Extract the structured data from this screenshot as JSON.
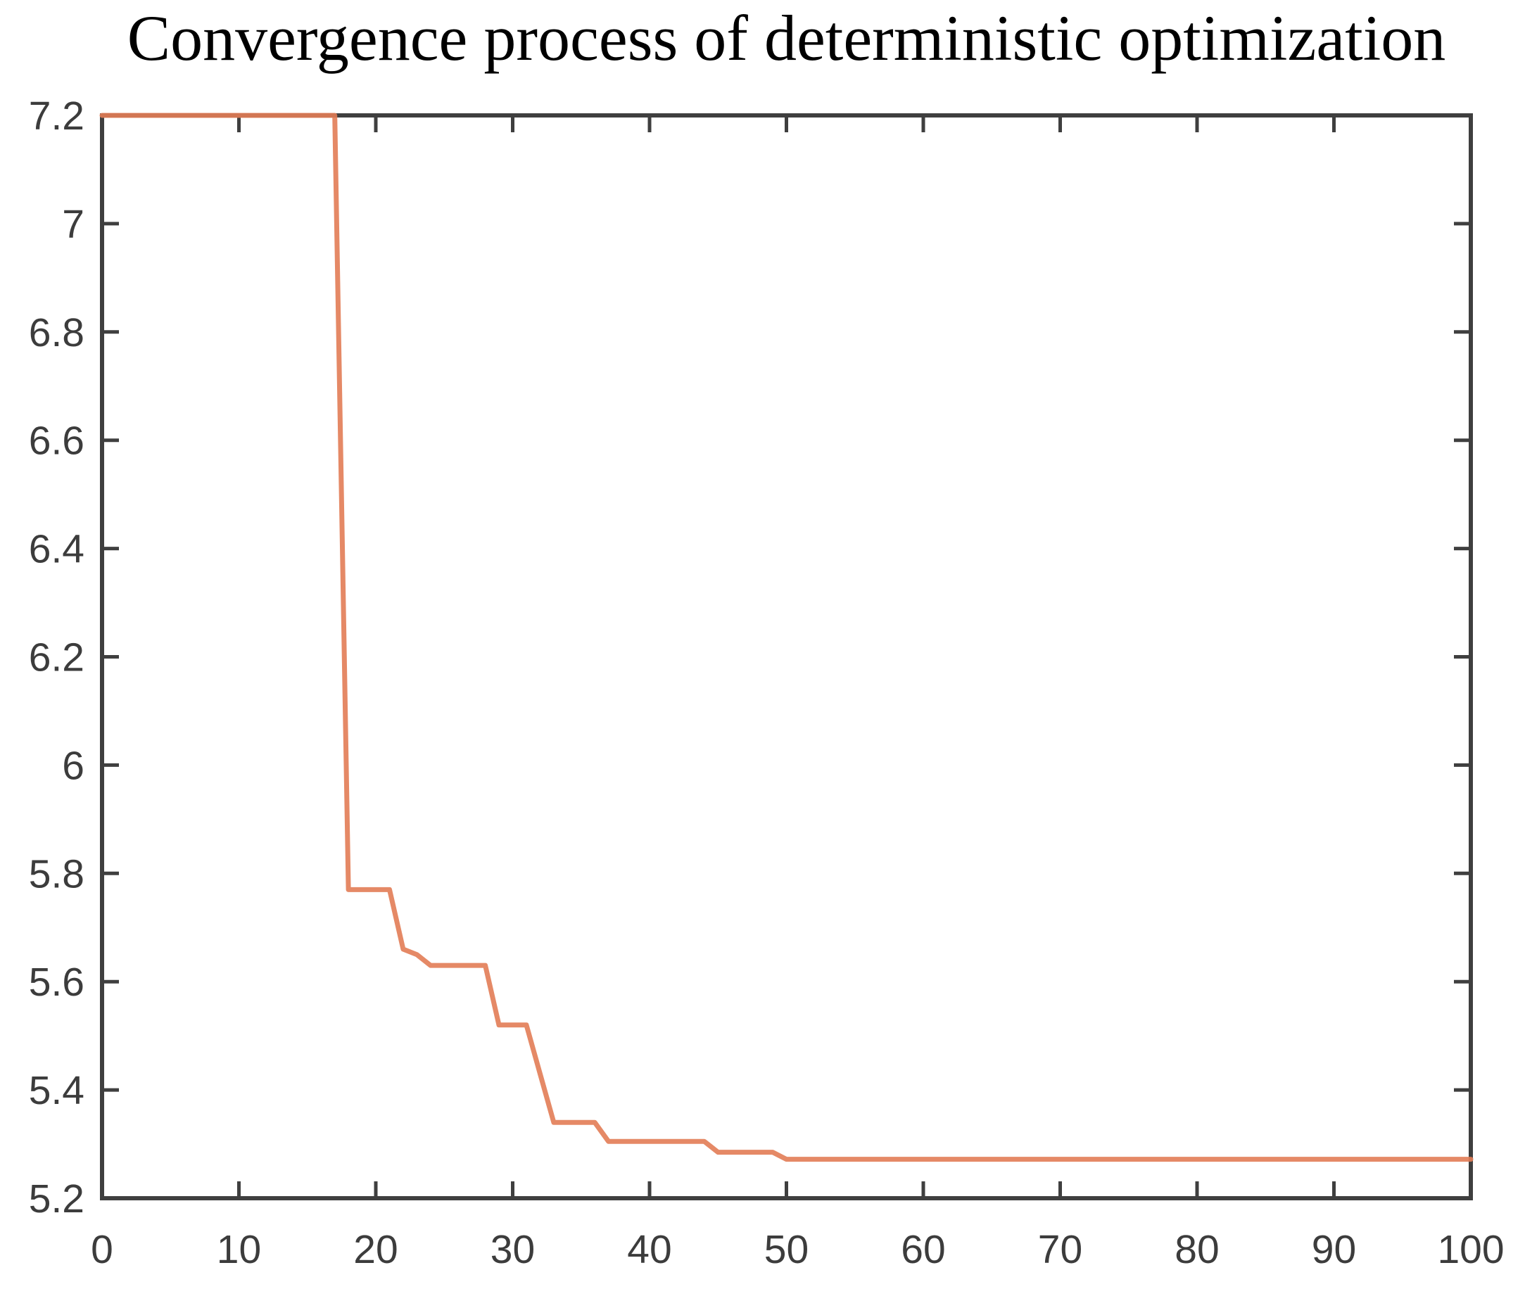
{
  "title": "Convergence process of deterministic optimization",
  "colors": {
    "background": "#ffffff",
    "axis": "#3f3f3f",
    "tick_label": "#3c3c3c",
    "title": "#000000",
    "line": "#e27c55"
  },
  "chart_data": {
    "type": "line",
    "title": "Convergence process of deterministic optimization",
    "xlabel": "",
    "ylabel": "",
    "xlim": [
      0,
      100
    ],
    "ylim": [
      5.2,
      7.2
    ],
    "grid": false,
    "legend": "none",
    "box": true,
    "ticks_inward_all_sides": true,
    "x_ticks": [
      0,
      10,
      20,
      30,
      40,
      50,
      60,
      70,
      80,
      90,
      100
    ],
    "x_tick_labels": [
      "0",
      "10",
      "20",
      "30",
      "40",
      "50",
      "60",
      "70",
      "80",
      "90",
      "100"
    ],
    "y_ticks": [
      5.2,
      5.4,
      5.6,
      5.8,
      6,
      6.2,
      6.4,
      6.6,
      6.8,
      7,
      7.2
    ],
    "y_tick_labels": [
      "5.2",
      "5.4",
      "5.6",
      "5.8",
      "6",
      "6.2",
      "6.4",
      "6.6",
      "6.8",
      "7",
      "7.2"
    ],
    "series": [
      {
        "name": "series-1",
        "color": "#e27c55",
        "points": [
          [
            0,
            7.2
          ],
          [
            17,
            7.2
          ],
          [
            18,
            5.77
          ],
          [
            21,
            5.77
          ],
          [
            22,
            5.66
          ],
          [
            23,
            5.65
          ],
          [
            24,
            5.63
          ],
          [
            28,
            5.63
          ],
          [
            29,
            5.52
          ],
          [
            31,
            5.52
          ],
          [
            32,
            5.43
          ],
          [
            33,
            5.34
          ],
          [
            36,
            5.34
          ],
          [
            37,
            5.305
          ],
          [
            44,
            5.305
          ],
          [
            45,
            5.285
          ],
          [
            49,
            5.285
          ],
          [
            50,
            5.272
          ],
          [
            100,
            5.272
          ]
        ]
      }
    ]
  }
}
